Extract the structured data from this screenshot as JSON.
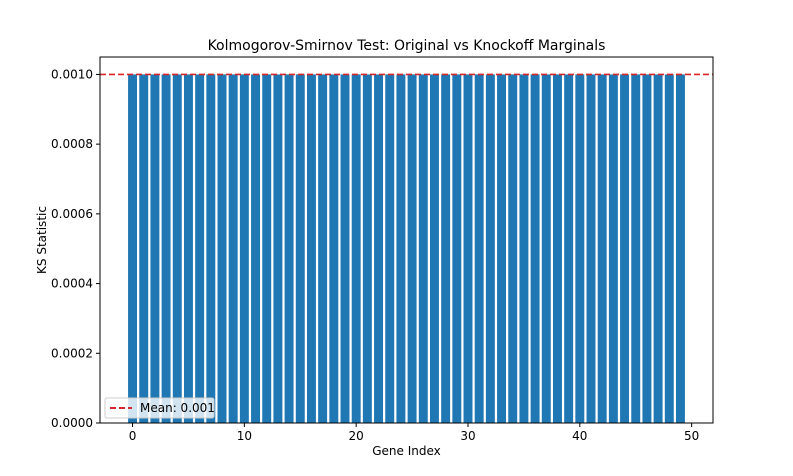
{
  "chart_data": {
    "type": "bar",
    "title": "Kolmogorov-Smirnov Test: Original vs Knockoff Marginals",
    "xlabel": "Gene Index",
    "ylabel": "KS Statistic",
    "x": [
      0,
      1,
      2,
      3,
      4,
      5,
      6,
      7,
      8,
      9,
      10,
      11,
      12,
      13,
      14,
      15,
      16,
      17,
      18,
      19,
      20,
      21,
      22,
      23,
      24,
      25,
      26,
      27,
      28,
      29,
      30,
      31,
      32,
      33,
      34,
      35,
      36,
      37,
      38,
      39,
      40,
      41,
      42,
      43,
      44,
      45,
      46,
      47,
      48,
      49
    ],
    "values": [
      0.001,
      0.001,
      0.001,
      0.001,
      0.001,
      0.001,
      0.001,
      0.001,
      0.001,
      0.001,
      0.001,
      0.001,
      0.001,
      0.001,
      0.001,
      0.001,
      0.001,
      0.001,
      0.001,
      0.001,
      0.001,
      0.001,
      0.001,
      0.001,
      0.001,
      0.001,
      0.001,
      0.001,
      0.001,
      0.001,
      0.001,
      0.001,
      0.001,
      0.001,
      0.001,
      0.001,
      0.001,
      0.001,
      0.001,
      0.001,
      0.001,
      0.001,
      0.001,
      0.001,
      0.001,
      0.001,
      0.001,
      0.001,
      0.001,
      0.001
    ],
    "xlim": [
      -2.91,
      51.91
    ],
    "ylim": [
      0,
      0.00105
    ],
    "xticks": [
      0,
      10,
      20,
      30,
      40,
      50
    ],
    "xtick_labels": [
      "0",
      "10",
      "20",
      "30",
      "40",
      "50"
    ],
    "yticks": [
      0,
      0.0002,
      0.0004,
      0.0006,
      0.0008,
      0.001
    ],
    "ytick_labels": [
      "0.0000",
      "0.0002",
      "0.0004",
      "0.0006",
      "0.0008",
      "0.0010"
    ],
    "bar_color": "#1f77b4",
    "mean_line": {
      "value": 0.001,
      "color": "#d62728",
      "style": "dashed"
    },
    "legend": {
      "placement": "lower-left",
      "entries": [
        "Mean: 0.001"
      ]
    },
    "grid": false
  }
}
